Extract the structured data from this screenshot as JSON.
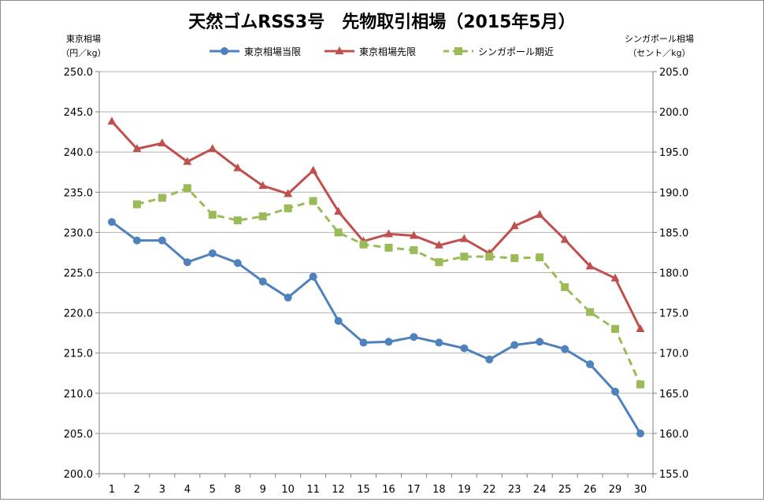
{
  "chart_data": {
    "type": "line",
    "title": "天然ゴムRSS3号　先物取引相場（2015年5月）",
    "ylabel_left": [
      "東京相場",
      "（円／kg）"
    ],
    "ylabel_right": [
      "シンガポール相場",
      "（セント／kg）"
    ],
    "ylim_left": [
      200,
      250
    ],
    "ylim_right": [
      155,
      205
    ],
    "y_ticks_left": [
      "200.0",
      "205.0",
      "210.0",
      "215.0",
      "220.0",
      "225.0",
      "230.0",
      "235.0",
      "240.0",
      "245.0",
      "250.0"
    ],
    "y_ticks_right": [
      "155.0",
      "160.0",
      "165.0",
      "170.0",
      "175.0",
      "180.0",
      "185.0",
      "190.0",
      "195.0",
      "200.0",
      "205.0"
    ],
    "categories": [
      "1",
      "2",
      "3",
      "4",
      "5",
      "8",
      "9",
      "10",
      "11",
      "12",
      "15",
      "16",
      "17",
      "18",
      "19",
      "22",
      "23",
      "24",
      "25",
      "26",
      "29",
      "30"
    ],
    "grid": "horizontal",
    "legend_position": "top",
    "series": [
      {
        "name": "東京相場当限",
        "axis": "left",
        "color": "#4f81bd",
        "marker": "circle",
        "values": [
          231.3,
          229.0,
          229.0,
          226.3,
          227.4,
          226.2,
          223.9,
          221.9,
          224.5,
          219.0,
          216.3,
          216.4,
          217.0,
          216.3,
          215.6,
          214.2,
          216.0,
          216.4,
          215.5,
          213.6,
          210.2,
          205.0
        ]
      },
      {
        "name": "東京相場先限",
        "axis": "left",
        "color": "#c0504d",
        "marker": "triangle",
        "values": [
          243.8,
          240.4,
          241.1,
          238.8,
          240.4,
          238.0,
          235.8,
          234.8,
          237.7,
          232.6,
          228.9,
          229.8,
          229.6,
          228.4,
          229.2,
          227.4,
          230.8,
          232.2,
          229.1,
          225.8,
          224.3,
          218.0
        ]
      },
      {
        "name": "シンガポール期近",
        "axis": "right",
        "color": "#9bbb59",
        "marker": "square",
        "dashed": true,
        "values": [
          null,
          188.5,
          189.3,
          190.5,
          187.2,
          186.5,
          187.0,
          188.0,
          188.9,
          185.0,
          183.5,
          183.1,
          182.8,
          181.3,
          182.0,
          182.0,
          181.8,
          181.9,
          178.2,
          175.1,
          173.0,
          166.1
        ]
      }
    ]
  }
}
